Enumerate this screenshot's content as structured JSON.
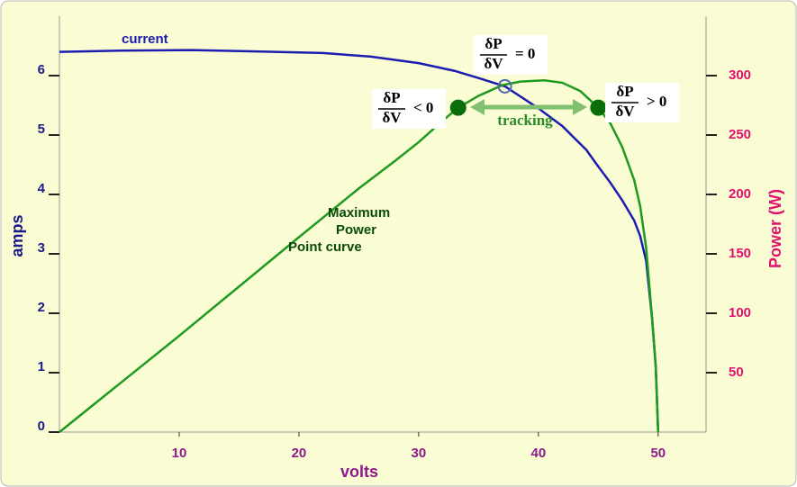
{
  "chart_data": {
    "type": "line",
    "x_label": "volts",
    "y_label": "amps",
    "y2_label": "Power (W)",
    "xlim": [
      0,
      54
    ],
    "xticks": [
      10,
      20,
      30,
      40,
      50
    ],
    "ylim": [
      0,
      7
    ],
    "yticks": [
      0,
      1,
      2,
      3,
      4,
      5,
      6
    ],
    "y2lim": [
      0,
      350
    ],
    "y2ticks": [
      50,
      100,
      150,
      200,
      250,
      300
    ],
    "series": [
      {
        "name": "current",
        "color": "#1c1cb0",
        "x": [
          0,
          5,
          11,
          16,
          22,
          26,
          30,
          33,
          35,
          37.2,
          40,
          42,
          44,
          45,
          46,
          47,
          48,
          48.5,
          49,
          49.5,
          49.8,
          50
        ],
        "values": [
          6.4,
          6.42,
          6.43,
          6.41,
          6.38,
          6.32,
          6.21,
          6.08,
          5.96,
          5.82,
          5.45,
          5.15,
          4.75,
          4.47,
          4.2,
          3.9,
          3.56,
          3.3,
          2.88,
          1.9,
          1.1,
          0
        ]
      },
      {
        "name": "Maximum Power Point curve",
        "color": "#1e9a1e",
        "axis": "y2",
        "x": [
          0,
          10,
          20,
          25,
          28,
          30,
          32,
          33.3,
          35,
          37,
          38.5,
          40.5,
          42,
          43.5,
          45,
          46,
          47,
          48,
          48.5,
          49,
          49.5,
          49.8,
          50
        ],
        "values": [
          0,
          81,
          164,
          205,
          228,
          244,
          262,
          273,
          283,
          292,
          295,
          296,
          294,
          287,
          273,
          260,
          240,
          212,
          190,
          155,
          95,
          55,
          0
        ]
      }
    ],
    "points": [
      {
        "x": 33.3,
        "value": 273,
        "axis": "y2",
        "color": "#0b6e0b"
      },
      {
        "x": 45,
        "value": 273,
        "axis": "y2",
        "color": "#0b6e0b"
      },
      {
        "x": 37.2,
        "value": 5.82,
        "color": "#4a6ab0"
      }
    ],
    "slope_labels": [
      {
        "numerator": "δP",
        "denominator": "δV",
        "relation": "< 0"
      },
      {
        "numerator": "δP",
        "denominator": "δV",
        "relation": "= 0"
      },
      {
        "numerator": "δP",
        "denominator": "δV",
        "relation": "> 0"
      }
    ],
    "tracking_label": "tracking"
  }
}
